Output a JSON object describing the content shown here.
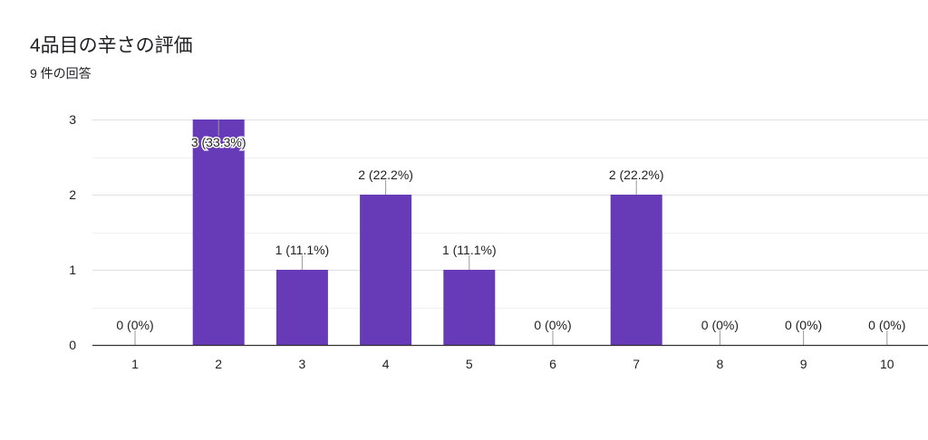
{
  "title": "4品目の辛さの評価",
  "subtitle": "9 件の回答",
  "colors": {
    "bar": "#673ab7",
    "grid": "#e6e6e6",
    "axis": "#333333",
    "leader": "#999999"
  },
  "chart_data": {
    "type": "bar",
    "categories": [
      "1",
      "2",
      "3",
      "4",
      "5",
      "6",
      "7",
      "8",
      "9",
      "10"
    ],
    "values": [
      0,
      3,
      1,
      2,
      1,
      0,
      2,
      0,
      0,
      0
    ],
    "data_labels": [
      "0 (0%)",
      "3 (33.3%)",
      "1 (11.1%)",
      "2 (22.2%)",
      "1 (11.1%)",
      "0 (0%)",
      "2 (22.2%)",
      "0 (0%)",
      "0 (0%)",
      "0 (0%)"
    ],
    "yticks": [
      "0",
      "1",
      "2",
      "3"
    ],
    "ylim": [
      0,
      3
    ],
    "grid": true,
    "legend": "none"
  }
}
